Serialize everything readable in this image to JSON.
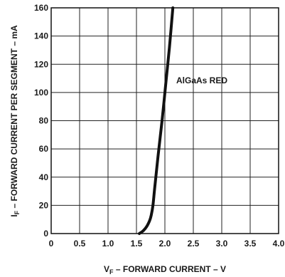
{
  "chart_data": {
    "type": "line",
    "xlabel": {
      "main": "V",
      "sub": "F",
      "rest": " – FORWARD CURRENT – V"
    },
    "ylabel": {
      "main": "I",
      "sub": "F",
      "rest": " – FORWARD CURRENT PER SEGMENT – mA"
    },
    "xlim": [
      0,
      4.0
    ],
    "ylim": [
      0,
      160
    ],
    "xticks": [
      "0",
      "0.5",
      "1.0",
      "1.5",
      "2.0",
      "2.5",
      "3.0",
      "3.5",
      "4.0"
    ],
    "yticks": [
      "0",
      "20",
      "40",
      "60",
      "80",
      "100",
      "120",
      "140",
      "160"
    ],
    "grid": true,
    "annotation": "AlGaAs RED",
    "series": [
      {
        "name": "AlGaAs RED",
        "x": [
          1.55,
          1.62,
          1.68,
          1.73,
          1.76,
          1.79,
          1.82,
          1.88,
          1.95,
          2.02,
          2.08,
          2.14
        ],
        "y": [
          0,
          2,
          5,
          9,
          13,
          20,
          32,
          55,
          80,
          108,
          132,
          160
        ]
      }
    ]
  }
}
